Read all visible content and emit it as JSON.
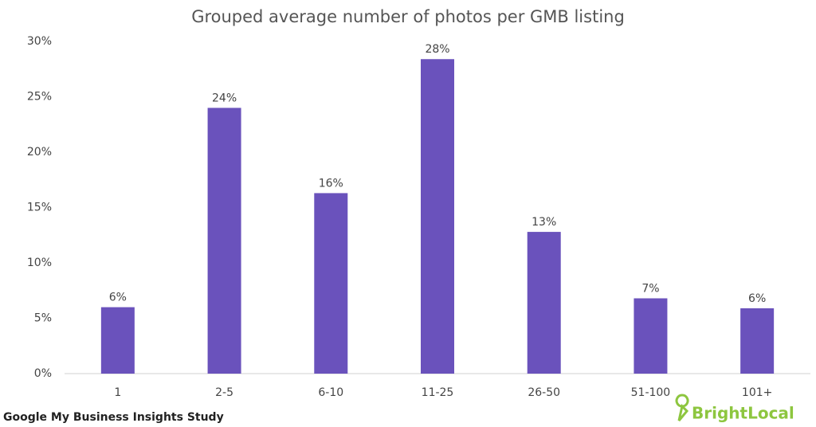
{
  "chart_data": {
    "type": "bar",
    "title": "Grouped average number of photos per GMB listing",
    "categories": [
      "1",
      "2-5",
      "6-10",
      "11-25",
      "26-50",
      "51-100",
      "101+"
    ],
    "values": [
      6,
      24,
      16.3,
      28.4,
      12.8,
      6.8,
      5.9
    ],
    "value_labels": [
      "6%",
      "24%",
      "16%",
      "28%",
      "13%",
      "7%",
      "6%"
    ],
    "color": "#6a52bc",
    "ylim": [
      0,
      30
    ],
    "yticks": [
      {
        "value": 0,
        "label": "0%"
      },
      {
        "value": 5,
        "label": "5%"
      },
      {
        "value": 10,
        "label": "10%"
      },
      {
        "value": 15,
        "label": "15%"
      },
      {
        "value": 20,
        "label": "20%"
      },
      {
        "value": 25,
        "label": "25%"
      },
      {
        "value": 30,
        "label": "30%"
      }
    ],
    "grid": false,
    "source": "Google My Business Insights Study",
    "brand": "BrightLocal"
  }
}
